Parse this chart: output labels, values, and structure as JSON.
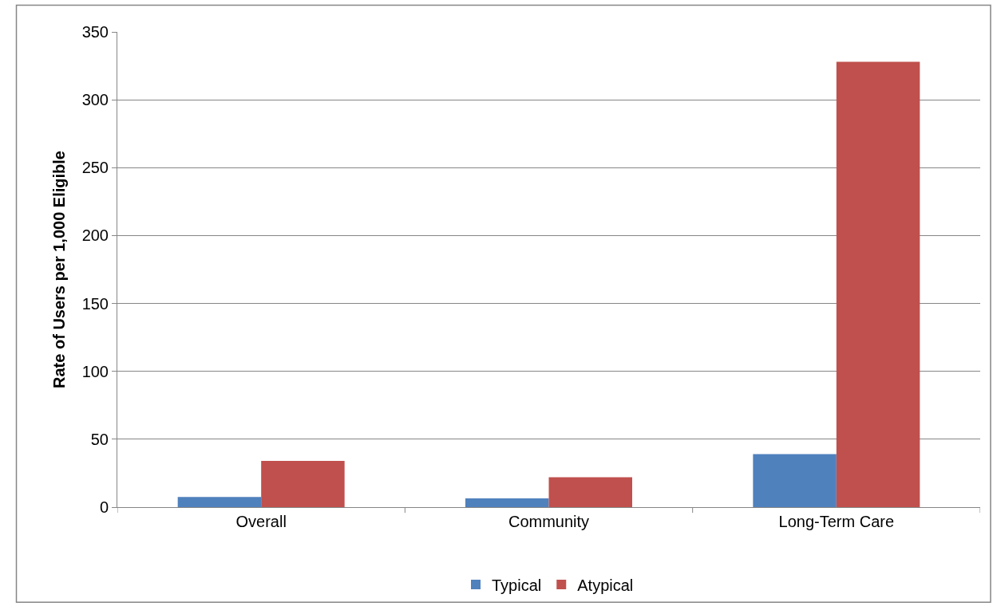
{
  "chart_data": {
    "type": "bar",
    "ylabel": "Rate of Users per 1,000 Eligible",
    "categories": [
      "Overall",
      "Community",
      "Long-Term Care"
    ],
    "series": [
      {
        "name": "Typical",
        "color": "#4f81bd",
        "values": [
          7.5,
          6.5,
          39
        ]
      },
      {
        "name": "Atypical",
        "color": "#c0504d",
        "values": [
          34,
          22,
          328
        ]
      }
    ],
    "ylim": [
      0,
      350
    ],
    "yticks": [
      0,
      50,
      100,
      150,
      200,
      250,
      300,
      350
    ],
    "grid": "y",
    "legend": "bottom"
  }
}
